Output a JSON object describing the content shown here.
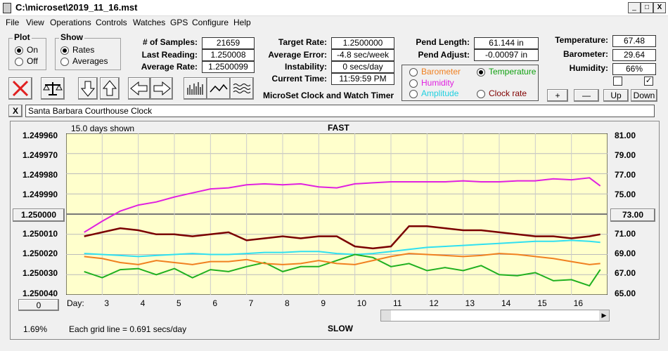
{
  "window": {
    "title": "C:\\microset\\2019_11_16.mst",
    "controls": [
      "_",
      "□",
      "X"
    ]
  },
  "menu": [
    "File",
    "View",
    "Operations",
    "Controls",
    "Watches",
    "GPS",
    "Configure",
    "Help"
  ],
  "plot_group": {
    "title": "Plot",
    "options": [
      "On",
      "Off"
    ],
    "selected": "On"
  },
  "show_group": {
    "title": "Show",
    "options": [
      "Rates",
      "Averages"
    ],
    "selected": "Rates"
  },
  "stats": {
    "samples_label": "# of Samples:",
    "samples": "21659",
    "last_label": "Last Reading:",
    "last": "1.250008",
    "avg_label": "Average Rate:",
    "avg": "1.2500099",
    "target_label": "Target Rate:",
    "target": "1.2500000",
    "avgerr_label": "Average Error:",
    "avgerr": "-4.8 sec/week",
    "instab_label": "Instability:",
    "instab": "0 secs/day",
    "time_label": "Current Time:",
    "time": "11:59:59 PM",
    "pendlen_label": "Pend Length:",
    "pendlen": "61.144 in",
    "pendadj_label": "Pend Adjust:",
    "pendadj": "-0.00097 in",
    "temp_label": "Temperature:",
    "temp": "67.48",
    "baro_label": "Barometer:",
    "baro": "29.64",
    "hum_label": "Humidity:",
    "hum": "66%"
  },
  "app_title": "MicroSet Clock and Watch Timer",
  "sensors": {
    "barometer": "Barometer",
    "temperature": "Temperature",
    "humidity": "Humidity",
    "amplitude": "Amplitude",
    "clockrate": "Clock rate",
    "selected": "Temperature"
  },
  "sensor_buttons": [
    "+",
    "—",
    "Up",
    "Down"
  ],
  "checkboxes": [
    false,
    true
  ],
  "toolbar_icons": [
    "stop-icon",
    "balance-icon",
    "arrow-down-icon",
    "arrow-up-icon",
    "arrow-left-icon",
    "arrow-right-icon",
    "bar-graph-icon",
    "line-graph-icon",
    "wave-icon"
  ],
  "clock_name": "Santa Barbara Courthouse Clock",
  "close_x": "X",
  "graph": {
    "days_shown": "15.0 days shown",
    "fast": "FAST",
    "slow": "SLOW",
    "left_ticks": [
      "1.249960",
      "1.249970",
      "1.249980",
      "1.249990",
      "1.250000",
      "1.250010",
      "1.250020",
      "1.250030",
      "1.250040"
    ],
    "right_ticks": [
      "81.00",
      "79.00",
      "77.00",
      "75.00",
      "73.00",
      "71.00",
      "69.00",
      "67.00",
      "65.00"
    ],
    "left_center_button": "1.250000",
    "right_center_button": "73.00",
    "bottom_left_button": "0",
    "day_label": "Day:",
    "days": [
      "3",
      "4",
      "5",
      "6",
      "7",
      "8",
      "9",
      "10",
      "11",
      "12",
      "13",
      "14",
      "15",
      "16"
    ],
    "gridline_text": "Each grid line = 0.691 secs/day",
    "pct": "1.69%",
    "colors": {
      "plot_bg": "#ffffcc",
      "rate": "#7a0000",
      "humidity": "#e020e0",
      "amplitude": "#30e0f0",
      "temperature": "#20b020",
      "barometer": "#f08020"
    }
  },
  "chart_data": {
    "type": "line",
    "x": [
      2.5,
      3,
      3.5,
      4,
      4.5,
      5,
      5.5,
      6,
      6.5,
      7,
      7.5,
      8,
      8.5,
      9,
      9.5,
      10,
      10.5,
      11,
      11.5,
      12,
      12.5,
      13,
      13.5,
      14,
      14.5,
      15,
      15.5,
      16,
      16.5,
      16.8
    ],
    "series": [
      {
        "axis": "left",
        "values": [
          1.250011,
          1.250009,
          1.250007,
          1.250008,
          1.25001,
          1.25001,
          1.250011,
          1.25001,
          1.250009,
          1.250013,
          1.250012,
          1.250011,
          1.250012,
          1.250011,
          1.250011,
          1.250016,
          1.250017,
          1.250016,
          1.250006,
          1.250006,
          1.250007,
          1.250008,
          1.250008,
          1.250009,
          1.25001,
          1.250011,
          1.250011,
          1.250012,
          1.250011,
          1.25001
        ]
      },
      {
        "axis": "right",
        "values": [
          71.2,
          72.3,
          73.3,
          73.9,
          74.2,
          74.7,
          75.1,
          75.5,
          75.6,
          75.9,
          76.0,
          75.9,
          76.0,
          75.7,
          75.6,
          76.0,
          76.1,
          76.2,
          76.2,
          76.2,
          76.2,
          76.3,
          76.2,
          76.2,
          76.3,
          76.3,
          76.5,
          76.4,
          76.6,
          75.8
        ]
      },
      {
        "axis": "right",
        "values": [
          69.1,
          69.0,
          68.9,
          68.8,
          68.9,
          69.0,
          69.1,
          69.0,
          69.0,
          69.1,
          69.2,
          69.2,
          69.3,
          69.3,
          69.1,
          69.0,
          69.1,
          69.3,
          69.5,
          69.7,
          69.8,
          69.9,
          70.0,
          70.1,
          70.2,
          70.3,
          70.3,
          70.4,
          70.3,
          70.2
        ]
      },
      {
        "axis": "right",
        "values": [
          67.3,
          66.7,
          67.5,
          67.6,
          67.0,
          67.6,
          66.7,
          67.5,
          67.3,
          67.8,
          68.2,
          67.3,
          67.8,
          67.8,
          68.4,
          69.0,
          68.7,
          67.8,
          68.1,
          67.4,
          67.7,
          67.4,
          67.9,
          67.0,
          66.9,
          67.2,
          66.4,
          66.5,
          65.9,
          67.5
        ]
      },
      {
        "axis": "right",
        "values": [
          68.8,
          68.6,
          68.2,
          68.0,
          68.4,
          68.2,
          68.0,
          68.3,
          68.3,
          68.5,
          68.1,
          68.0,
          68.1,
          68.4,
          68.1,
          68.0,
          68.4,
          68.8,
          69.1,
          69.0,
          68.9,
          68.8,
          68.9,
          69.1,
          69.0,
          68.8,
          68.6,
          68.3,
          68.0,
          68.1
        ]
      }
    ],
    "ylim_left": [
      1.24996,
      1.25004
    ],
    "ylim_right": [
      65,
      81
    ],
    "xlim": [
      2.0,
      17.0
    ],
    "grid": true
  }
}
